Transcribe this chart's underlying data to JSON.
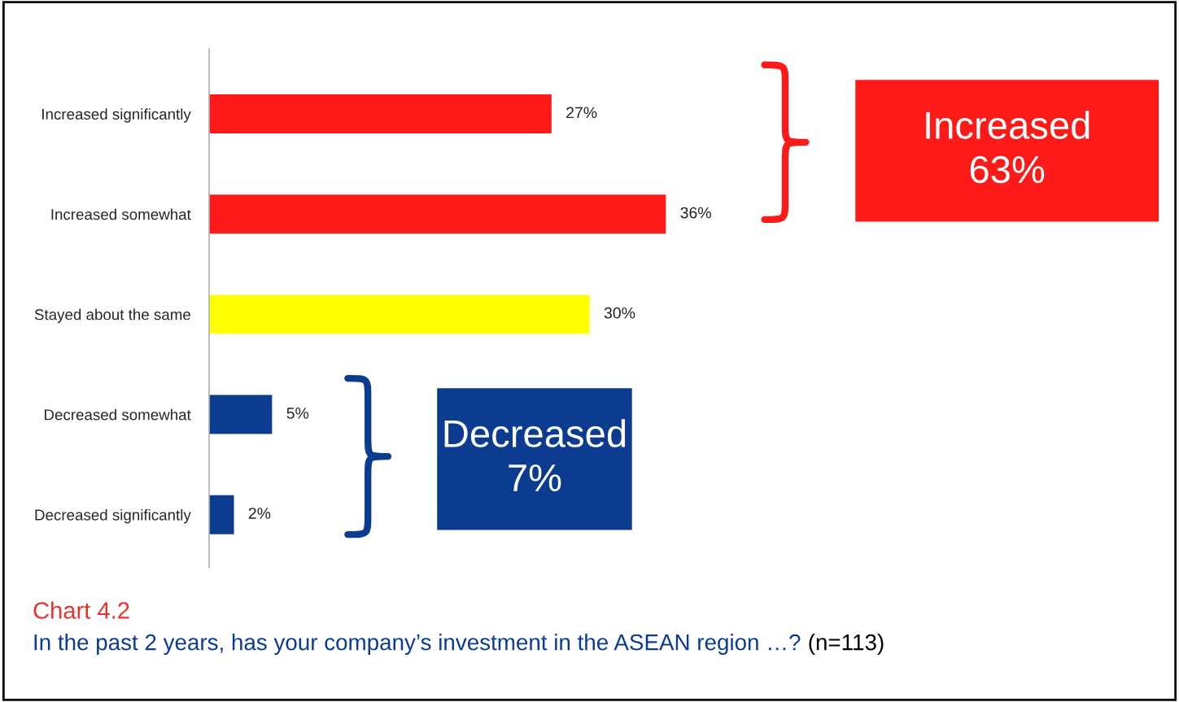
{
  "chart_data": {
    "type": "bar",
    "orientation": "horizontal",
    "title": "Chart 4.2",
    "subtitle": "In the past 2 years, has your company’s investment in the ASEAN region …?",
    "categories": [
      "Increased significantly",
      "Increased somewhat",
      "Stayed about the same",
      "Decreased somewhat",
      "Decreased significantly"
    ],
    "values": [
      27,
      36,
      30,
      5,
      2
    ],
    "colors": [
      "#ff1a1a",
      "#ff1a1a",
      "#ffff00",
      "#0c3c8f",
      "#0c3c8f"
    ],
    "value_labels": [
      "27%",
      "36%",
      "30%",
      "5%",
      "2%"
    ],
    "annotations": [
      "(n=113)",
      "Increased\n63%",
      "Decreased\n7%"
    ],
    "grid": false,
    "legend": false
  }
}
